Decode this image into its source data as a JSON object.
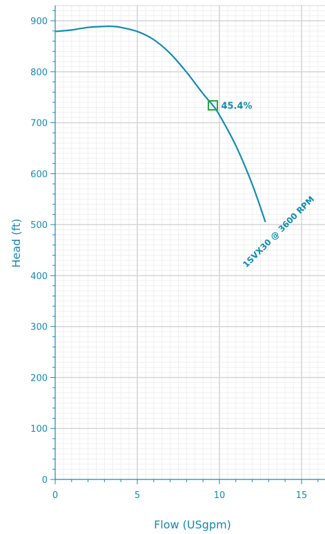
{
  "chart_data": {
    "type": "line",
    "title": "",
    "xlabel": "Flow (USgpm)",
    "ylabel": "Head (ft)",
    "xlim": [
      0,
      16.3
    ],
    "ylim": [
      0,
      935
    ],
    "x_ticks": [
      0,
      5,
      10,
      15
    ],
    "y_ticks": [
      0,
      100,
      200,
      300,
      400,
      500,
      600,
      700,
      800,
      900
    ],
    "grid": true,
    "series": [
      {
        "name": "1SVX30 @ 3600 RPM",
        "x": [
          0,
          1,
          2,
          3,
          3.5,
          4,
          5,
          6,
          7,
          8,
          9,
          9.6,
          10,
          11,
          12,
          12.8
        ],
        "y": [
          879,
          882,
          887,
          889,
          889,
          887,
          879,
          863,
          836,
          799,
          757,
          734,
          715,
          655,
          579,
          505
        ]
      }
    ],
    "annotations": [
      {
        "x": 9.6,
        "y": 734,
        "text": "45.4%",
        "marker": "square"
      }
    ],
    "colors": {
      "curve": "#0f8cb0",
      "axis": "#1588b3",
      "grid_major": "#d4d4d4",
      "grid_minor": "#efefef",
      "marker": "#1faa3a"
    }
  }
}
